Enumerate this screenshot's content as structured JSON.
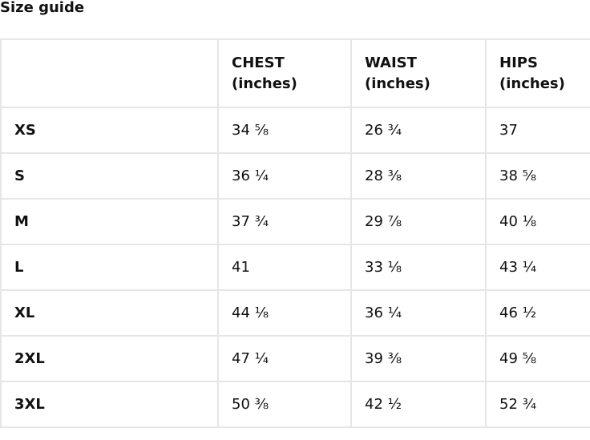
{
  "title": "Size guide",
  "table": {
    "headers": [
      {
        "label": "",
        "unit": ""
      },
      {
        "label": "CHEST",
        "unit": "(inches)"
      },
      {
        "label": "WAIST",
        "unit": "(inches)"
      },
      {
        "label": "HIPS",
        "unit": "(inches)"
      }
    ],
    "rows": [
      {
        "size": "XS",
        "chest": "34 ⅝",
        "waist": "26 ¾",
        "hips": "37"
      },
      {
        "size": "S",
        "chest": "36 ¼",
        "waist": "28 ⅜",
        "hips": "38 ⅝"
      },
      {
        "size": "M",
        "chest": "37 ¾",
        "waist": "29 ⅞",
        "hips": "40 ⅛"
      },
      {
        "size": "L",
        "chest": "41",
        "waist": "33 ⅛",
        "hips": "43 ¼"
      },
      {
        "size": "XL",
        "chest": "44 ⅛",
        "waist": "36 ¼",
        "hips": "46 ½"
      },
      {
        "size": "2XL",
        "chest": "47 ¼",
        "waist": "39 ⅜",
        "hips": "49 ⅝"
      },
      {
        "size": "3XL",
        "chest": "50 ⅜",
        "waist": "42 ½",
        "hips": "52 ¾"
      }
    ]
  }
}
